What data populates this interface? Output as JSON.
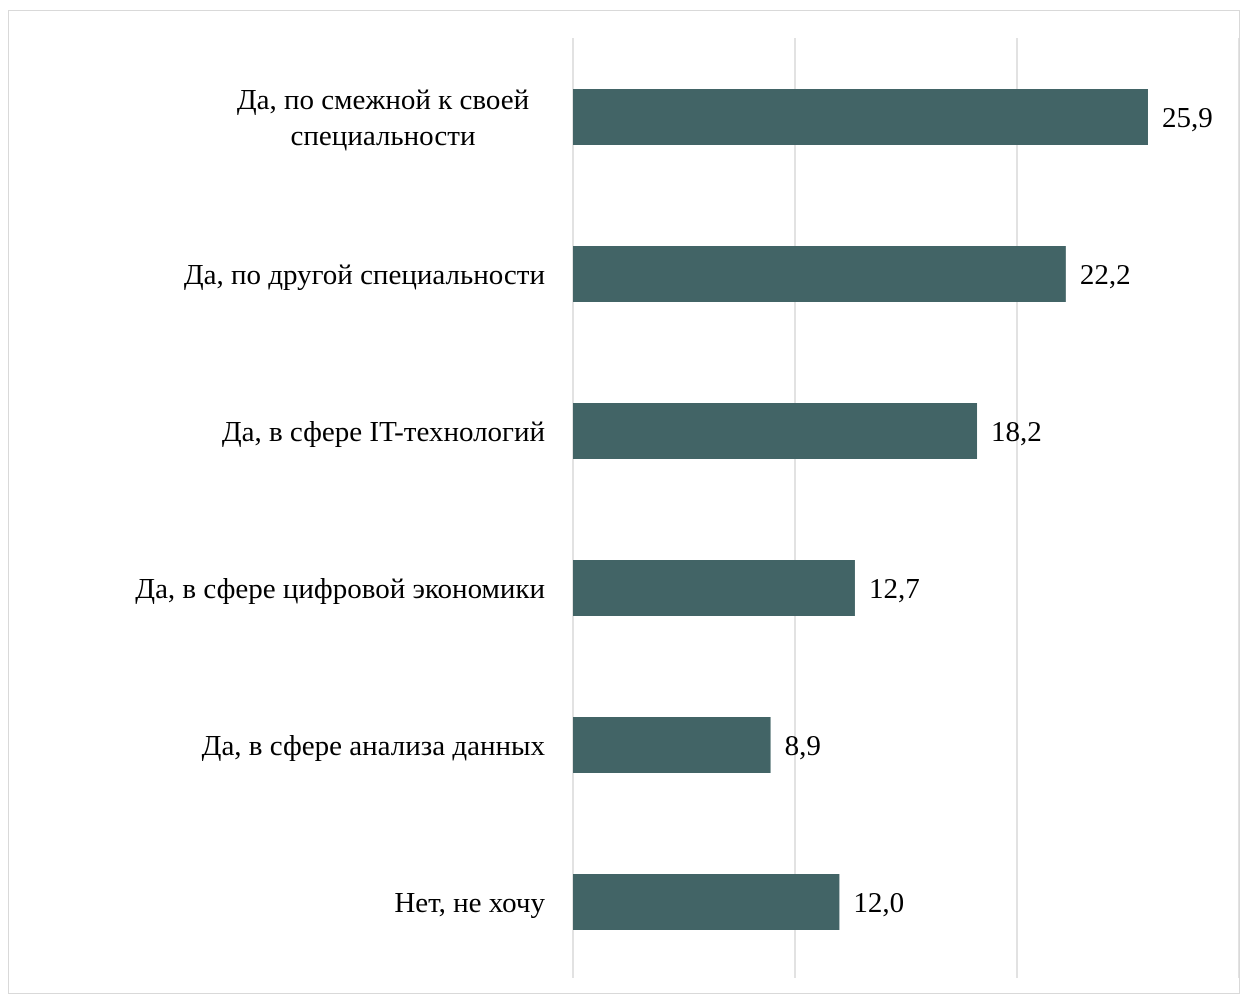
{
  "chart_data": {
    "type": "bar",
    "orientation": "horizontal",
    "title": "",
    "xlabel": "",
    "ylabel": "",
    "categories": [
      "Да, по смежной к своей специальности",
      "Да, по другой специальности",
      "Да, в сфере IT-технологий",
      "Да, в сфере цифровой экономики",
      "Да, в сфере анализа данных",
      "Нет, не хочу"
    ],
    "category_lines": [
      [
        "Да, по смежной к своей",
        "специальности"
      ],
      [
        "Да, по другой специальности"
      ],
      [
        "Да, в сфере IT-технологий"
      ],
      [
        "Да, в сфере цифровой экономики"
      ],
      [
        "Да, в сфере анализа данных"
      ],
      [
        "Нет, не хочу"
      ]
    ],
    "values": [
      25.9,
      22.2,
      18.2,
      12.7,
      8.9,
      12.0
    ],
    "value_labels": [
      "25,9",
      "22,2",
      "18,2",
      "12,7",
      "8,9",
      "12,0"
    ],
    "xlim": [
      0,
      30
    ],
    "gridlines_at": [
      0,
      10,
      20,
      30
    ],
    "grid": true,
    "legend": "none",
    "bar_color": "#426466",
    "gridline_color": "#d9d9d9"
  }
}
